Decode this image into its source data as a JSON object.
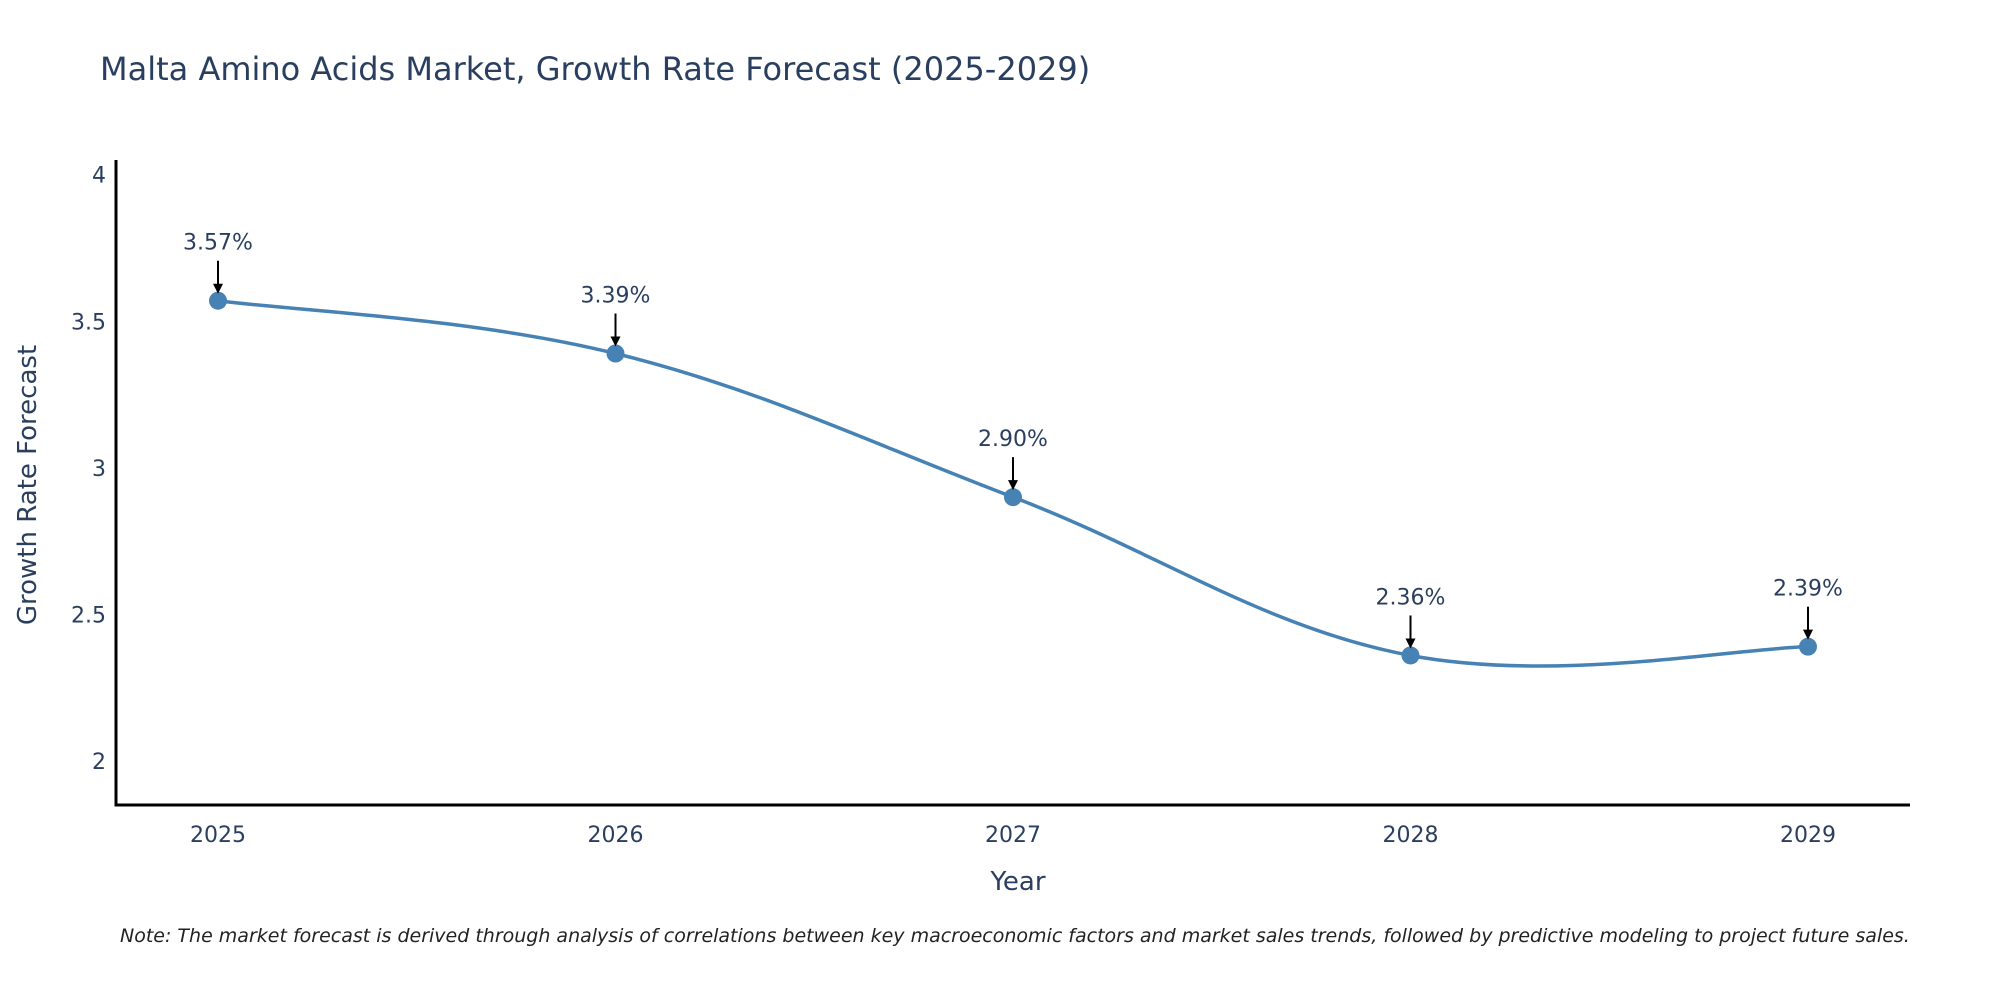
{
  "colors": {
    "line": "#4682B4",
    "marker": "#4682B4",
    "axis": "#000000",
    "text": "#2a3f5f",
    "arrow": "#000000"
  },
  "chart_data": {
    "type": "line",
    "title": "Malta Amino Acids Market, Growth Rate Forecast (2025-2029)",
    "xlabel": "Year",
    "ylabel": "Growth Rate Forecast",
    "categories": [
      "2025",
      "2026",
      "2027",
      "2028",
      "2029"
    ],
    "series": [
      {
        "name": "Growth Rate Forecast",
        "values": [
          3.57,
          3.39,
          2.9,
          2.36,
          2.39
        ]
      }
    ],
    "data_labels": [
      "3.57%",
      "3.39%",
      "2.90%",
      "2.36%",
      "2.39%"
    ],
    "ylim": [
      1.85,
      4.05
    ],
    "yticks": [
      2,
      2.5,
      3,
      3.5,
      4
    ],
    "ytick_labels": [
      "2",
      "2.5",
      "3",
      "3.5",
      "4"
    ],
    "grid": false,
    "line_shape": "spline"
  },
  "note": "Note: The market forecast is derived through analysis of correlations between key macroeconomic factors and market sales trends, followed by predictive modeling to project future sales."
}
